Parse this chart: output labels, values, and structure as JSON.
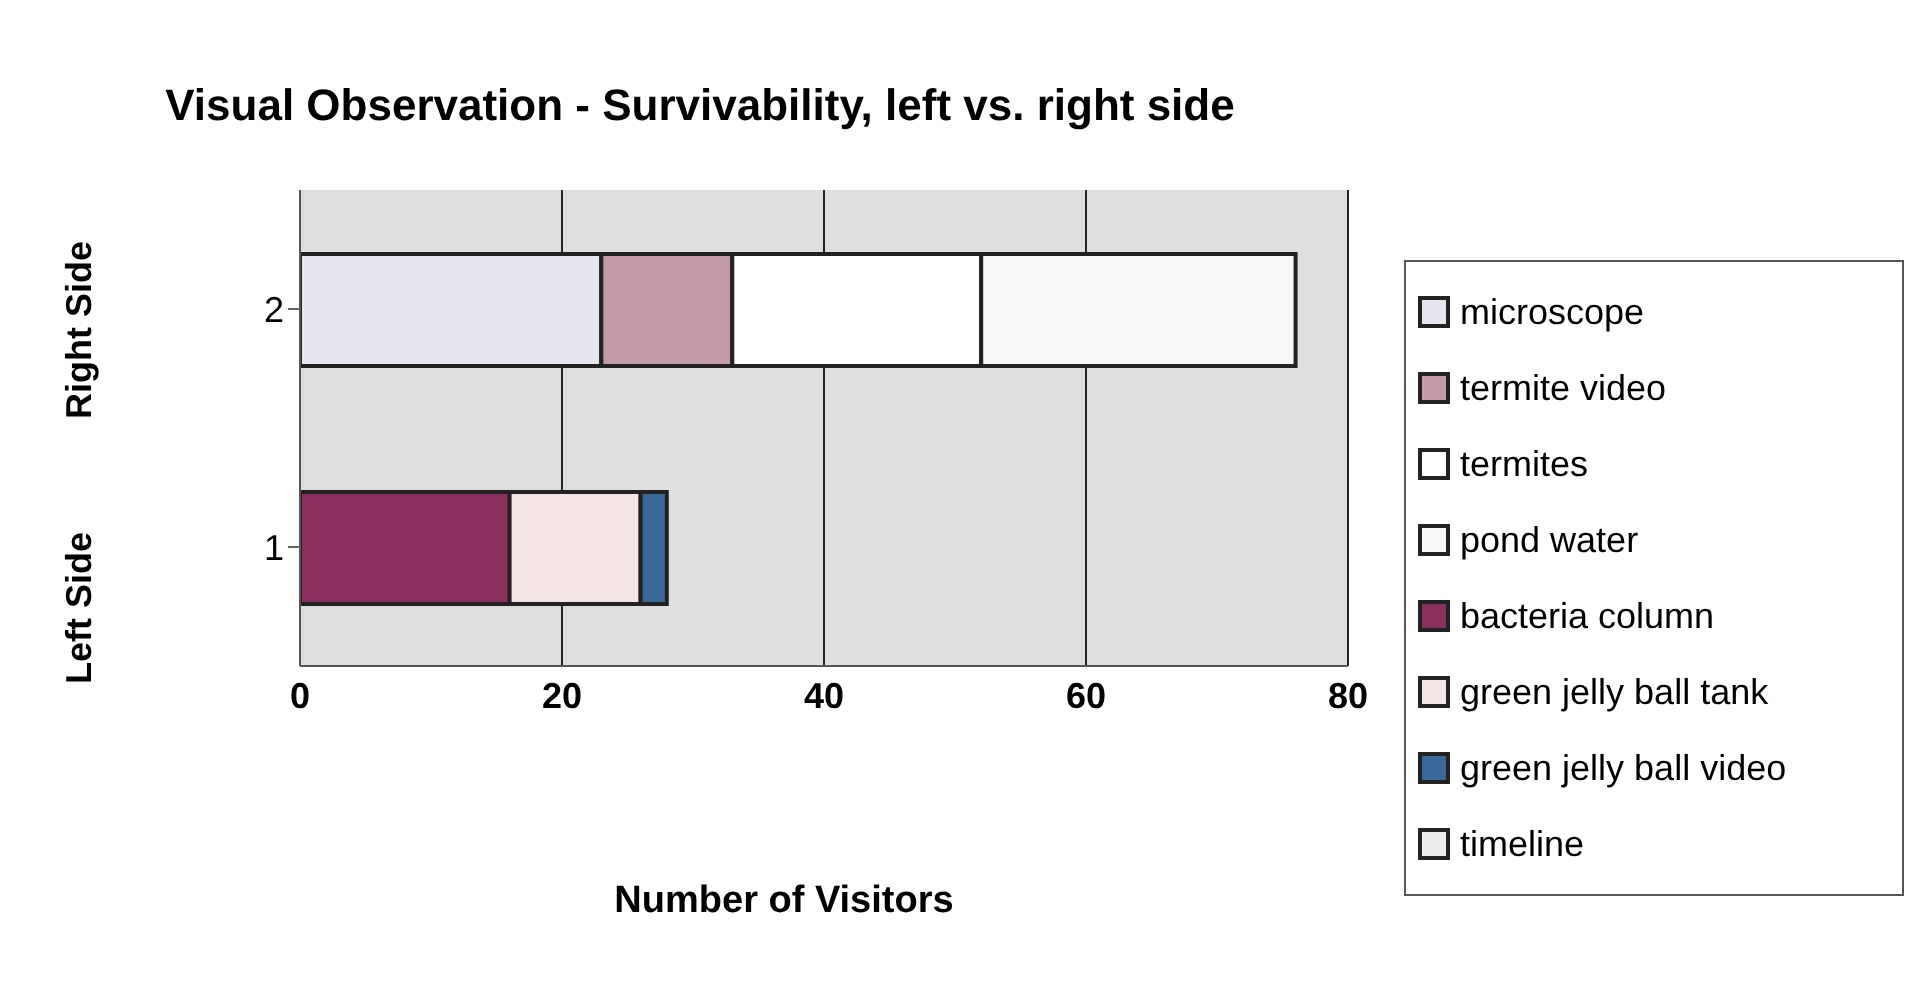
{
  "chart_data": {
    "type": "bar",
    "orientation": "horizontal",
    "stacked": true,
    "title": "Visual Observation - Survivability, left vs. right side",
    "xlabel": "Number of Visitors",
    "categories": [
      "2",
      "1"
    ],
    "series": [
      {
        "name": "microscope",
        "color": "#e6e6ee",
        "values": [
          23,
          0
        ]
      },
      {
        "name": "termite video",
        "color": "#c49aa8",
        "values": [
          10,
          0
        ]
      },
      {
        "name": "termites",
        "color": "#ffffff",
        "values": [
          19,
          0
        ]
      },
      {
        "name": "pond water",
        "color": "#f8f8f8",
        "values": [
          24,
          0
        ]
      },
      {
        "name": "bacteria column",
        "color": "#8b2f5e",
        "values": [
          0,
          16
        ]
      },
      {
        "name": "green jelly ball tank",
        "color": "#f5e6e6",
        "values": [
          0,
          10
        ]
      },
      {
        "name": "green jelly ball video",
        "color": "#3a6a9a",
        "values": [
          0,
          2
        ]
      },
      {
        "name": "timeline",
        "color": "#eeeeee",
        "values": [
          0,
          0
        ]
      }
    ],
    "xlim": [
      0,
      80
    ],
    "xticks": [
      0,
      20,
      40,
      60,
      80
    ],
    "grid": "x",
    "legend": "right",
    "annotations": [
      "Right Side",
      "Left Side"
    ]
  }
}
